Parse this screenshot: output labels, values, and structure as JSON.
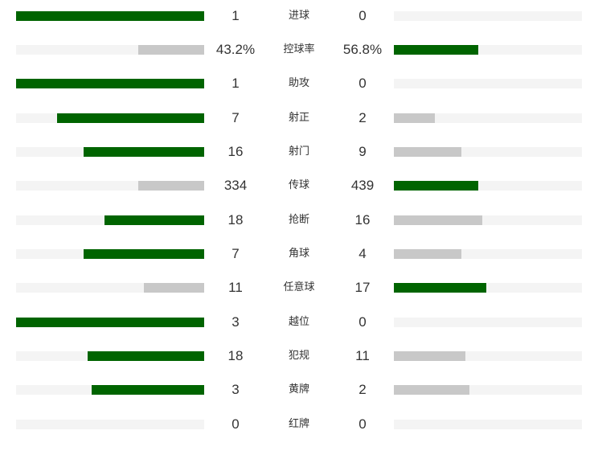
{
  "colors": {
    "leading_bar": "#006400",
    "trailing_bar": "#c8c8c8",
    "track": "#f4f4f4"
  },
  "stats": [
    {
      "label": "进球",
      "home": "1",
      "away": "0",
      "home_share": 1.0,
      "away_share": 0.0
    },
    {
      "label": "控球率",
      "home": "43.2%",
      "away": "56.8%",
      "home_share": 0.35,
      "away_share": 0.45
    },
    {
      "label": "助攻",
      "home": "1",
      "away": "0",
      "home_share": 1.0,
      "away_share": 0.0
    },
    {
      "label": "射正",
      "home": "7",
      "away": "2",
      "home_share": 0.78,
      "away_share": 0.22
    },
    {
      "label": "射门",
      "home": "16",
      "away": "9",
      "home_share": 0.64,
      "away_share": 0.36
    },
    {
      "label": "传球",
      "home": "334",
      "away": "439",
      "home_share": 0.35,
      "away_share": 0.45
    },
    {
      "label": "抢断",
      "home": "18",
      "away": "16",
      "home_share": 0.53,
      "away_share": 0.47
    },
    {
      "label": "角球",
      "home": "7",
      "away": "4",
      "home_share": 0.64,
      "away_share": 0.36
    },
    {
      "label": "任意球",
      "home": "11",
      "away": "17",
      "home_share": 0.32,
      "away_share": 0.49
    },
    {
      "label": "越位",
      "home": "3",
      "away": "0",
      "home_share": 1.0,
      "away_share": 0.0
    },
    {
      "label": "犯规",
      "home": "18",
      "away": "11",
      "home_share": 0.62,
      "away_share": 0.38
    },
    {
      "label": "黄牌",
      "home": "3",
      "away": "2",
      "home_share": 0.6,
      "away_share": 0.4
    },
    {
      "label": "红牌",
      "home": "0",
      "away": "0",
      "home_share": 0.0,
      "away_share": 0.0
    }
  ]
}
